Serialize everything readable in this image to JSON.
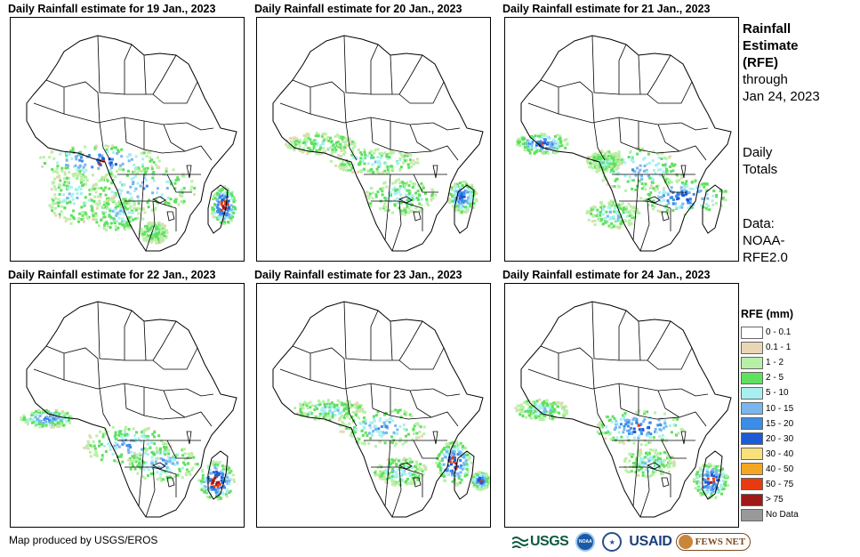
{
  "panels": [
    {
      "title": "Daily Rainfall estimate for 19 Jan., 2023"
    },
    {
      "title": "Daily Rainfall estimate for 20 Jan., 2023"
    },
    {
      "title": "Daily Rainfall estimate for 21 Jan., 2023"
    },
    {
      "title": "Daily Rainfall estimate for 22 Jan., 2023"
    },
    {
      "title": "Daily Rainfall estimate for 23 Jan., 2023"
    },
    {
      "title": "Daily Rainfall estimate for 24 Jan., 2023"
    }
  ],
  "info": {
    "heading_line1": "Rainfall",
    "heading_line2": "Estimate",
    "heading_line3": "(RFE)",
    "through_label": "through",
    "through_date": "Jan 24, 2023",
    "daily_line1": "Daily",
    "daily_line2": "Totals",
    "data_label": "Data:",
    "data_line1": "NOAA-",
    "data_line2": "RFE2.0"
  },
  "legend": {
    "title": "RFE (mm)",
    "items": [
      {
        "label": "0 - 0.1",
        "color": "#ffffff"
      },
      {
        "label": "0.1 - 1",
        "color": "#e8d6b4"
      },
      {
        "label": "1 - 2",
        "color": "#b8f0a8"
      },
      {
        "label": "2 - 5",
        "color": "#5fe05f"
      },
      {
        "label": "5 - 10",
        "color": "#a8f0f0"
      },
      {
        "label": "10 - 15",
        "color": "#7ab6ee"
      },
      {
        "label": "15 - 20",
        "color": "#3c8de8"
      },
      {
        "label": "20 - 30",
        "color": "#1c5ad6"
      },
      {
        "label": "30 - 40",
        "color": "#f8e07a"
      },
      {
        "label": "40 - 50",
        "color": "#f5a623"
      },
      {
        "label": "50 - 75",
        "color": "#e83a10"
      },
      {
        "label": "> 75",
        "color": "#a01818"
      },
      {
        "label": "No Data",
        "color": "#999999"
      }
    ]
  },
  "credit": "Map produced by USGS/EROS",
  "logos": {
    "usgs": "USGS",
    "noaa": "NOAA",
    "usaid": "USAID",
    "fews": "FEWS NET"
  }
}
